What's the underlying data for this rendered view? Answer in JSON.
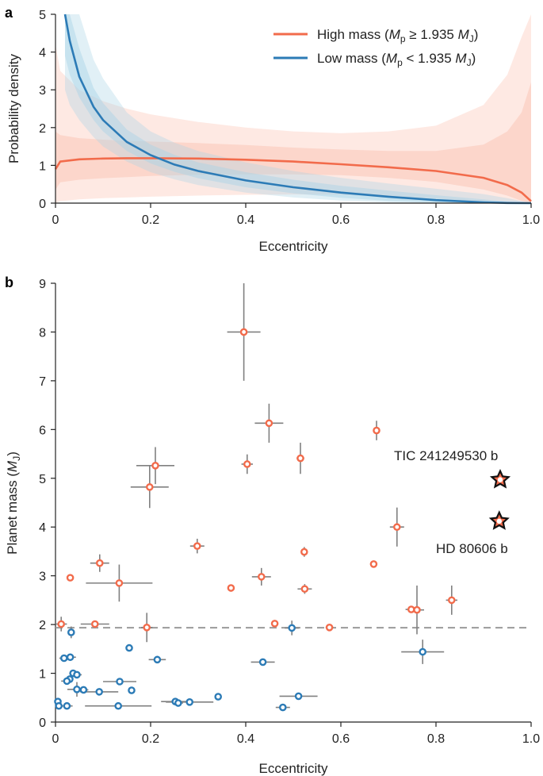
{
  "colors": {
    "high": "#f26b4b",
    "low": "#2c7bb6",
    "high_fill": "#fbbfae",
    "low_fill": "#a9d3e6",
    "errbar": "#808080",
    "threshold": "#9a9a9a"
  },
  "chart_data": [
    {
      "panel": "a",
      "type": "line",
      "xlabel": "Eccentricity",
      "ylabel": "Probability density",
      "xlim": [
        0,
        1
      ],
      "ylim": [
        0,
        5
      ],
      "xticks": [
        "0",
        "0.2",
        "0.4",
        "0.6",
        "0.8",
        "1.0"
      ],
      "yticks": [
        "0",
        "1",
        "2",
        "3",
        "4",
        "5"
      ],
      "legend": {
        "position": "top-right",
        "entries": [
          {
            "series": "high",
            "prefix": "High mass (",
            "Mp": "M",
            "p": "p",
            "rel": " ≥ 1.935 ",
            "MJ": "M",
            "J": "J",
            "suffix": ")"
          },
          {
            "series": "low",
            "prefix": "Low mass (",
            "Mp": "M",
            "p": "p",
            "rel": " < 1.935 ",
            "MJ": "M",
            "J": "J",
            "suffix": ")"
          }
        ]
      },
      "series": [
        {
          "name": "High mass",
          "key": "high",
          "x": [
            0.0,
            0.01,
            0.05,
            0.1,
            0.15,
            0.2,
            0.3,
            0.4,
            0.5,
            0.6,
            0.7,
            0.8,
            0.9,
            0.95,
            0.98,
            1.0
          ],
          "y": [
            0.9,
            1.1,
            1.16,
            1.18,
            1.19,
            1.19,
            1.18,
            1.15,
            1.1,
            1.03,
            0.95,
            0.85,
            0.67,
            0.48,
            0.28,
            0.05
          ],
          "lo1": [
            0.35,
            0.55,
            0.62,
            0.66,
            0.69,
            0.72,
            0.75,
            0.76,
            0.76,
            0.74,
            0.67,
            0.56,
            0.36,
            0.2,
            0.06,
            0.0
          ],
          "hi1": [
            1.9,
            1.8,
            1.72,
            1.68,
            1.65,
            1.63,
            1.59,
            1.54,
            1.47,
            1.42,
            1.38,
            1.38,
            1.55,
            1.9,
            2.4,
            3.2
          ],
          "lo2": [
            0.0,
            0.05,
            0.1,
            0.13,
            0.15,
            0.17,
            0.2,
            0.22,
            0.23,
            0.22,
            0.18,
            0.12,
            0.03,
            0.0,
            0.0,
            0.0
          ],
          "hi2": [
            4.2,
            3.5,
            3.0,
            2.7,
            2.5,
            2.35,
            2.15,
            2.0,
            1.9,
            1.85,
            1.9,
            2.05,
            2.6,
            3.4,
            4.4,
            5.0
          ]
        },
        {
          "name": "Low mass",
          "key": "low",
          "x": [
            0.02,
            0.03,
            0.05,
            0.08,
            0.1,
            0.15,
            0.2,
            0.25,
            0.3,
            0.4,
            0.5,
            0.6,
            0.7,
            0.8,
            0.9,
            0.95,
            1.0
          ],
          "y": [
            5.0,
            4.3,
            3.35,
            2.55,
            2.2,
            1.62,
            1.27,
            1.02,
            0.85,
            0.6,
            0.42,
            0.28,
            0.17,
            0.08,
            0.02,
            0.005,
            0.0
          ],
          "lo1": [
            3.9,
            3.4,
            2.8,
            2.2,
            1.9,
            1.38,
            1.05,
            0.83,
            0.66,
            0.42,
            0.26,
            0.14,
            0.06,
            0.015,
            0.0,
            0.0,
            0.0
          ],
          "hi1": [
            5.0,
            5.0,
            4.1,
            3.05,
            2.65,
            1.95,
            1.55,
            1.28,
            1.08,
            0.82,
            0.62,
            0.46,
            0.33,
            0.21,
            0.1,
            0.04,
            0.0
          ],
          "lo2": [
            3.0,
            2.6,
            2.2,
            1.75,
            1.5,
            1.1,
            0.82,
            0.63,
            0.48,
            0.28,
            0.15,
            0.07,
            0.02,
            0.0,
            0.0,
            0.0,
            0.0
          ],
          "hi2": [
            5.0,
            5.0,
            5.0,
            3.8,
            3.3,
            2.4,
            1.9,
            1.6,
            1.38,
            1.08,
            0.85,
            0.67,
            0.52,
            0.38,
            0.24,
            0.13,
            0.0
          ]
        }
      ]
    },
    {
      "panel": "b",
      "type": "scatter",
      "xlabel": "Eccentricity",
      "ylabel_prefix": "Planet mass (",
      "ylabel_M": "M",
      "ylabel_J": "J",
      "ylabel_suffix": ")",
      "xlim": [
        0,
        1
      ],
      "ylim": [
        0,
        9
      ],
      "xticks": [
        "0",
        "0.2",
        "0.4",
        "0.6",
        "0.8",
        "1.0"
      ],
      "yticks": [
        "0",
        "1",
        "2",
        "3",
        "4",
        "5",
        "6",
        "7",
        "8",
        "9"
      ],
      "threshold": 1.935,
      "annotations": [
        {
          "text": "TIC 241249530 b",
          "x": 0.935,
          "y": 4.97
        },
        {
          "text": "HD 80606 b",
          "x": 0.933,
          "y": 4.12
        }
      ],
      "high": [
        {
          "e": 0.396,
          "m": 8.0,
          "ex": 0.035,
          "ey": 1.0
        },
        {
          "e": 0.449,
          "m": 6.13,
          "ex": 0.03,
          "ey": 0.4
        },
        {
          "e": 0.675,
          "m": 5.98,
          "ex": 0.005,
          "ey": 0.2
        },
        {
          "e": 0.515,
          "m": 5.41,
          "ex": 0.008,
          "ey": 0.32
        },
        {
          "e": 0.403,
          "m": 5.29,
          "ex": 0.012,
          "ey": 0.2
        },
        {
          "e": 0.21,
          "m": 5.26,
          "ex": 0.04,
          "ey": 0.38
        },
        {
          "e": 0.198,
          "m": 4.82,
          "ex": 0.04,
          "ey": 0.43
        },
        {
          "e": 0.718,
          "m": 4.0,
          "ex": 0.015,
          "ey": 0.4
        },
        {
          "e": 0.298,
          "m": 3.61,
          "ex": 0.015,
          "ey": 0.15
        },
        {
          "e": 0.523,
          "m": 3.49,
          "ex": 0.0,
          "ey": 0.1
        },
        {
          "e": 0.093,
          "m": 3.26,
          "ex": 0.02,
          "ey": 0.18
        },
        {
          "e": 0.669,
          "m": 3.24,
          "ex": 0.0,
          "ey": 0.0
        },
        {
          "e": 0.433,
          "m": 2.98,
          "ex": 0.02,
          "ey": 0.18
        },
        {
          "e": 0.031,
          "m": 2.96,
          "ex": 0.0,
          "ey": 0.0
        },
        {
          "e": 0.134,
          "m": 2.85,
          "ex": 0.07,
          "ey": 0.38
        },
        {
          "e": 0.369,
          "m": 2.75,
          "ex": 0.0,
          "ey": 0.0
        },
        {
          "e": 0.524,
          "m": 2.73,
          "ex": 0.015,
          "ey": 0.1
        },
        {
          "e": 0.833,
          "m": 2.5,
          "ex": 0.012,
          "ey": 0.3
        },
        {
          "e": 0.748,
          "m": 2.31,
          "ex": 0.012,
          "ey": 0.0
        },
        {
          "e": 0.76,
          "m": 2.3,
          "ex": 0.015,
          "ey": 0.5
        },
        {
          "e": 0.461,
          "m": 2.02,
          "ex": 0.0,
          "ey": 0.0
        },
        {
          "e": 0.012,
          "m": 2.01,
          "ex": 0.012,
          "ey": 0.15
        },
        {
          "e": 0.083,
          "m": 2.01,
          "ex": 0.03,
          "ey": 0.0
        },
        {
          "e": 0.192,
          "m": 1.94,
          "ex": 0.012,
          "ey": 0.3
        },
        {
          "e": 0.576,
          "m": 1.94,
          "ex": 0.008,
          "ey": 0.0
        }
      ],
      "low": [
        {
          "e": 0.033,
          "m": 1.84,
          "ex": 0.0,
          "ey": 0.12
        },
        {
          "e": 0.497,
          "m": 1.93,
          "ex": 0.015,
          "ey": 0.15
        },
        {
          "e": 0.155,
          "m": 1.52,
          "ex": 0.0,
          "ey": 0.0
        },
        {
          "e": 0.772,
          "m": 1.44,
          "ex": 0.045,
          "ey": 0.25
        },
        {
          "e": 0.018,
          "m": 1.31,
          "ex": 0.01,
          "ey": 0.0
        },
        {
          "e": 0.031,
          "m": 1.33,
          "ex": 0.012,
          "ey": 0.0
        },
        {
          "e": 0.214,
          "m": 1.28,
          "ex": 0.018,
          "ey": 0.0
        },
        {
          "e": 0.436,
          "m": 1.23,
          "ex": 0.025,
          "ey": 0.0
        },
        {
          "e": 0.037,
          "m": 1.0,
          "ex": 0.008,
          "ey": 0.0
        },
        {
          "e": 0.045,
          "m": 0.97,
          "ex": 0.01,
          "ey": 0.0
        },
        {
          "e": 0.03,
          "m": 0.88,
          "ex": 0.0,
          "ey": 0.0
        },
        {
          "e": 0.024,
          "m": 0.84,
          "ex": 0.012,
          "ey": 0.0
        },
        {
          "e": 0.135,
          "m": 0.83,
          "ex": 0.035,
          "ey": 0.0
        },
        {
          "e": 0.045,
          "m": 0.67,
          "ex": 0.02,
          "ey": 0.15
        },
        {
          "e": 0.059,
          "m": 0.66,
          "ex": 0.01,
          "ey": 0.0
        },
        {
          "e": 0.092,
          "m": 0.62,
          "ex": 0.04,
          "ey": 0.0
        },
        {
          "e": 0.16,
          "m": 0.65,
          "ex": 0.0,
          "ey": 0.0
        },
        {
          "e": 0.342,
          "m": 0.52,
          "ex": 0.0,
          "ey": 0.0
        },
        {
          "e": 0.511,
          "m": 0.53,
          "ex": 0.04,
          "ey": 0.0
        },
        {
          "e": 0.282,
          "m": 0.41,
          "ex": 0.05,
          "ey": 0.0
        },
        {
          "e": 0.252,
          "m": 0.42,
          "ex": 0.03,
          "ey": 0.0
        },
        {
          "e": 0.258,
          "m": 0.39,
          "ex": 0.01,
          "ey": 0.0
        },
        {
          "e": 0.005,
          "m": 0.42,
          "ex": 0.005,
          "ey": 0.0
        },
        {
          "e": 0.007,
          "m": 0.33,
          "ex": 0.005,
          "ey": 0.0
        },
        {
          "e": 0.024,
          "m": 0.33,
          "ex": 0.012,
          "ey": 0.0
        },
        {
          "e": 0.132,
          "m": 0.33,
          "ex": 0.07,
          "ey": 0.0
        },
        {
          "e": 0.478,
          "m": 0.3,
          "ex": 0.015,
          "ey": 0.0
        }
      ],
      "highlight": [
        {
          "name": "TIC 241249530 b",
          "e": 0.935,
          "m": 4.97
        },
        {
          "name": "HD 80606 b",
          "e": 0.933,
          "m": 4.12
        }
      ]
    }
  ]
}
